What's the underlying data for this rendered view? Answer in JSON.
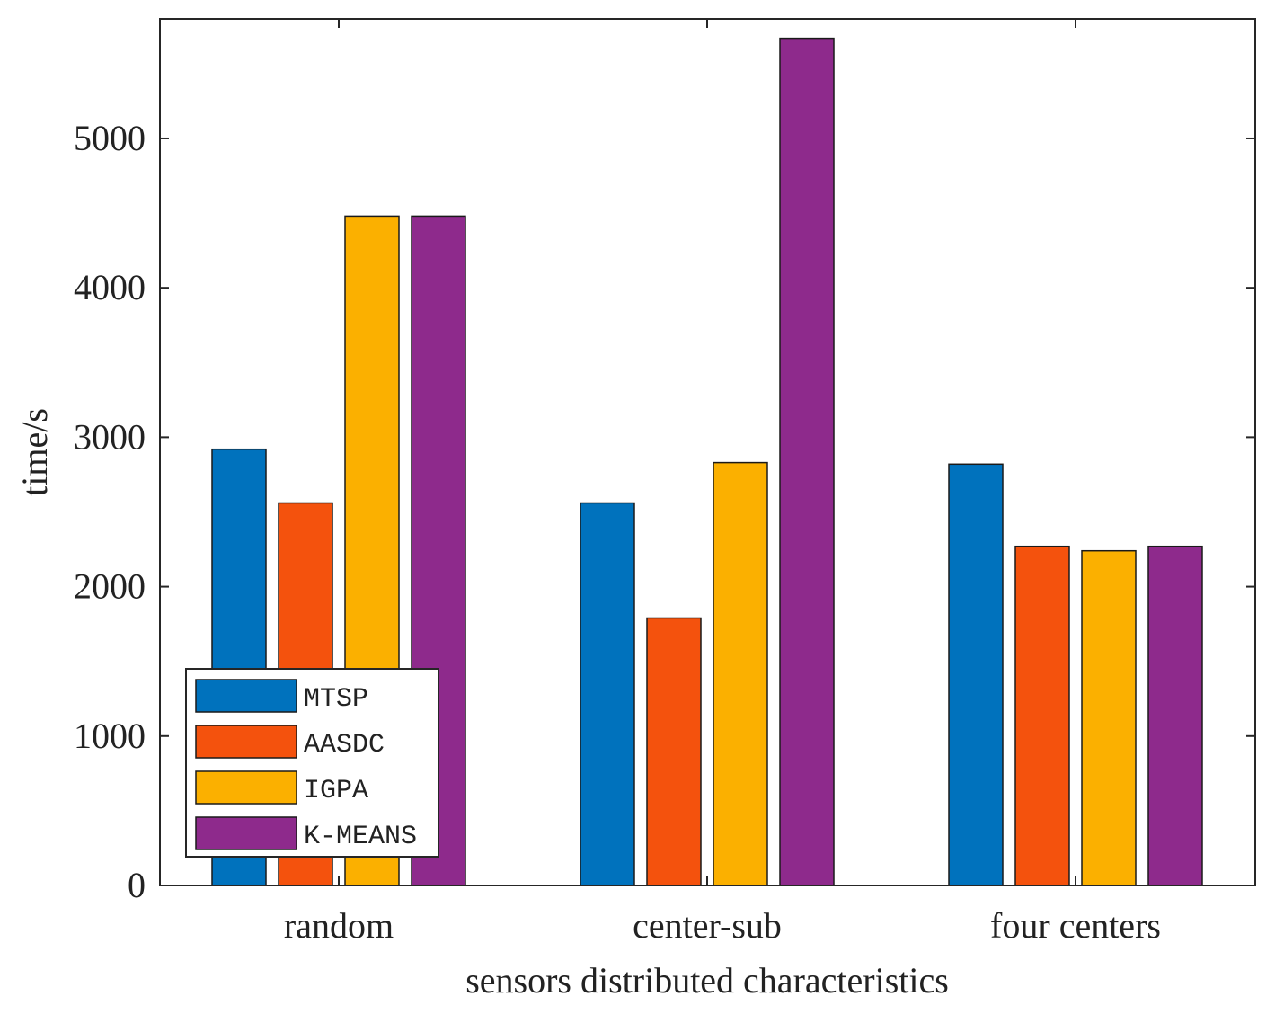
{
  "chart_data": {
    "type": "bar",
    "title": "",
    "xlabel": "sensors distributed characteristics",
    "ylabel": "time/s",
    "categories": [
      "random",
      "center-sub",
      "four centers"
    ],
    "ylim": [
      0,
      5800
    ],
    "yticks": [
      0,
      1000,
      2000,
      3000,
      4000,
      5000
    ],
    "series": [
      {
        "name": "MTSP",
        "color": "#0072BD",
        "values": [
          2920,
          2560,
          2820
        ]
      },
      {
        "name": "AASDC",
        "color": "#F4520D",
        "values": [
          2560,
          1790,
          2270
        ]
      },
      {
        "name": "IGPA",
        "color": "#FBB000",
        "values": [
          4480,
          2830,
          2240
        ]
      },
      {
        "name": "K-MEANS",
        "color": "#8E2A8C",
        "values": [
          4480,
          5670,
          2270
        ]
      }
    ],
    "legend": {
      "placement": "bottom-left"
    },
    "grid": false
  }
}
